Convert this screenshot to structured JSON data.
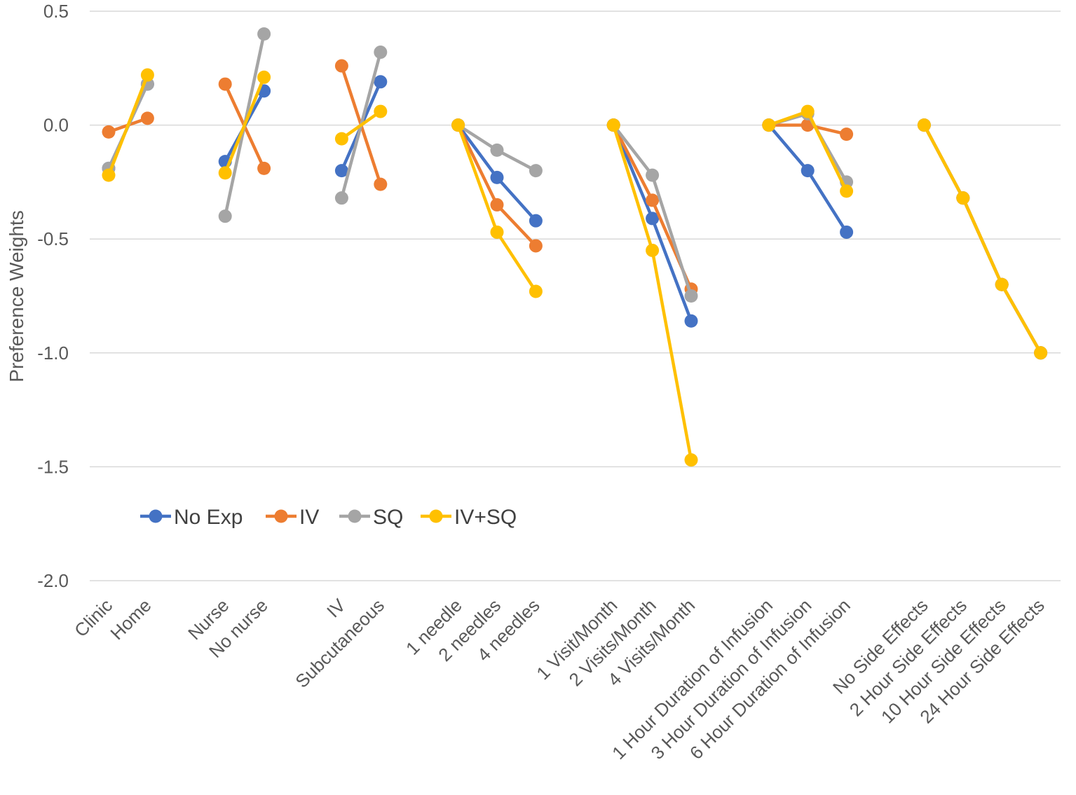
{
  "chart_data": {
    "type": "line",
    "title": "",
    "xlabel": "",
    "ylabel": "Preference Weights",
    "ylim": [
      -2.0,
      0.5
    ],
    "yticks": [
      0.5,
      0.0,
      -0.5,
      -1.0,
      -1.5,
      -2.0
    ],
    "ytick_labels": [
      "0.5",
      "0.0",
      "-0.5",
      "-1.0",
      "-1.5",
      "-2.0"
    ],
    "grid": true,
    "legend_position": "lower-left",
    "categories": [
      "Clinic",
      "Home",
      "",
      "Nurse",
      "No nurse",
      "",
      "IV",
      "Subcutaneous",
      "",
      "1 needle",
      "2 needles",
      "4 needles",
      "",
      "1 Visit/Month",
      "2 Visits/Month",
      "4 Visits/Month",
      "",
      "1 Hour Duration of Infusion",
      "3 Hour Duration of Infusion",
      "6 Hour Duration of Infusion",
      "",
      "No Side Effects",
      "2 Hour Side Effects",
      "10 Hour Side Effects",
      "24 Hour Side Effects"
    ],
    "series": [
      {
        "name": "No Exp",
        "color": "#4472C4",
        "values": [
          -0.19,
          0.18,
          null,
          -0.16,
          0.15,
          null,
          -0.2,
          0.19,
          null,
          0.0,
          -0.23,
          -0.42,
          null,
          0.0,
          -0.41,
          -0.86,
          null,
          0.0,
          -0.2,
          -0.47,
          null,
          0.0,
          -0.32,
          -0.7,
          -1.0
        ]
      },
      {
        "name": "IV",
        "color": "#ED7D31",
        "values": [
          -0.03,
          0.03,
          null,
          0.18,
          -0.19,
          null,
          0.26,
          -0.26,
          null,
          0.0,
          -0.35,
          -0.53,
          null,
          0.0,
          -0.33,
          -0.72,
          null,
          0.0,
          0.0,
          -0.04,
          null,
          0.0,
          -0.32,
          -0.7,
          -1.0
        ]
      },
      {
        "name": "SQ",
        "color": "#A5A5A5",
        "values": [
          -0.19,
          0.18,
          null,
          -0.4,
          0.4,
          null,
          -0.32,
          0.32,
          null,
          0.0,
          -0.11,
          -0.2,
          null,
          0.0,
          -0.22,
          -0.75,
          null,
          0.0,
          0.05,
          -0.25,
          null,
          0.0,
          -0.32,
          -0.7,
          -1.0
        ]
      },
      {
        "name": "IV+SQ",
        "color": "#FFC000",
        "values": [
          -0.22,
          0.22,
          null,
          -0.21,
          0.21,
          null,
          -0.06,
          0.06,
          null,
          0.0,
          -0.47,
          -0.73,
          null,
          0.0,
          -0.55,
          -1.47,
          null,
          0.0,
          0.06,
          -0.29,
          null,
          0.0,
          -0.32,
          -0.7,
          -1.0
        ]
      }
    ]
  }
}
